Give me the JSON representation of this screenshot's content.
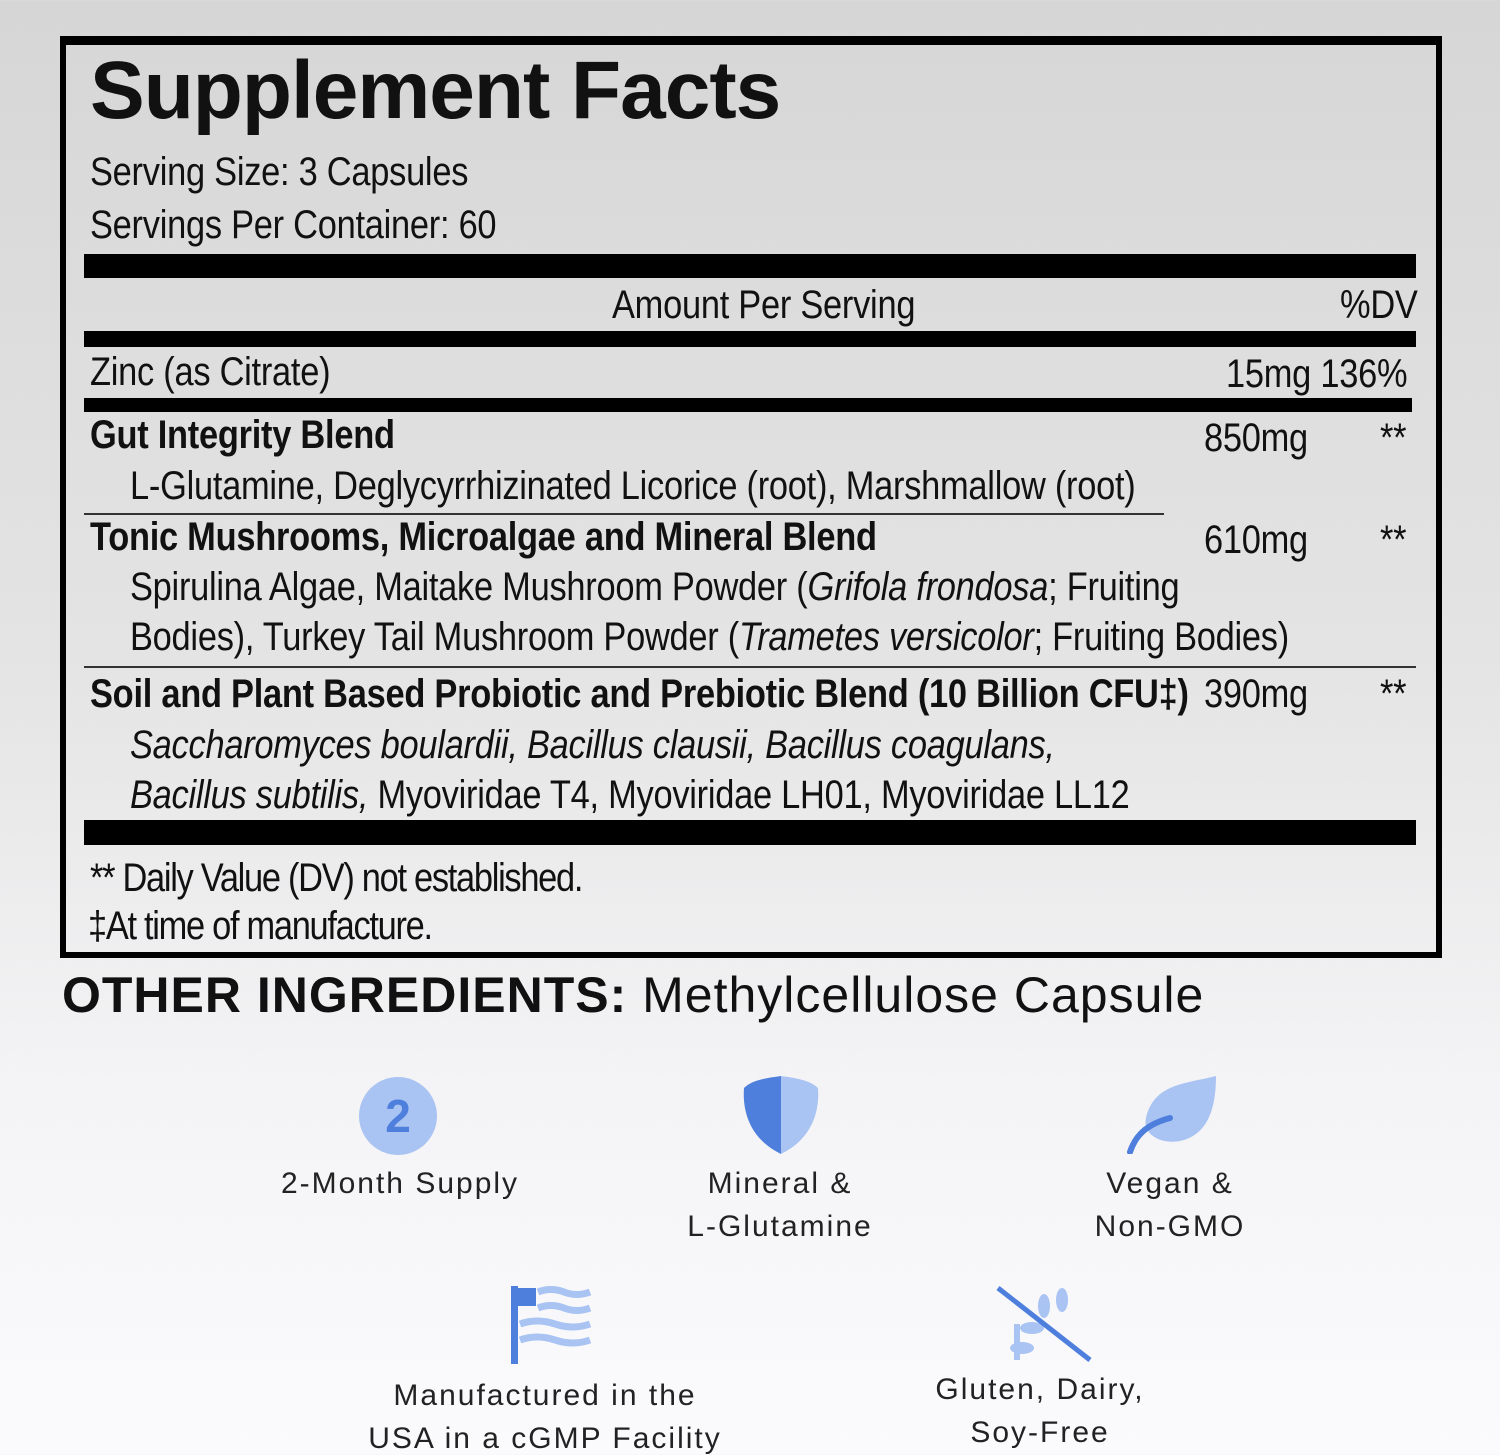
{
  "title": "Supplement Facts",
  "serving_size": "Serving Size: 3 Capsules",
  "servings_per_container": "Servings Per Container: 60",
  "header": {
    "amount": "Amount Per Serving",
    "dv": "%DV"
  },
  "zinc": {
    "name": "Zinc (as Citrate)",
    "amount": "15mg",
    "dv": "136%"
  },
  "blends": [
    {
      "name": "Gut Integrity Blend",
      "amount": "850mg",
      "dv": "**",
      "lines": [
        "L-Glutamine, Deglycyrrhizinated Licorice (root), Marshmallow (root)"
      ]
    },
    {
      "name": "Tonic Mushrooms, Microalgae and Mineral Blend",
      "amount": "610mg",
      "dv": "**",
      "l1a": "Spirulina Algae, Maitake Mushroom Powder (",
      "l1b": "Grifola frondosa",
      "l1c": "; Fruiting",
      "l2a": "Bodies), Turkey Tail Mushroom Powder (",
      "l2b": "Trametes versicolor",
      "l2c": "; Fruiting Bodies)"
    },
    {
      "name": "Soil and Plant Based Probiotic and Prebiotic Blend (10 Billion CFU‡)",
      "amount": "390mg",
      "dv": "**",
      "l1": "Saccharomyces boulardii, Bacillus clausii, Bacillus coagulans,",
      "l2a": "Bacillus subtilis,",
      "l2b": " Myoviridae T4, Myoviridae LH01, Myoviridae LL12"
    }
  ],
  "footnotes": [
    "** Daily Value (DV) not established.",
    "‡At time of manufacture."
  ],
  "other_ingredients": {
    "label": "OTHER INGREDIENTS:",
    "value": " Methylcellulose Capsule"
  },
  "badges": [
    {
      "icon": "number-2-circle-icon",
      "lines": [
        "2-Month Supply"
      ],
      "glyph": "2"
    },
    {
      "icon": "shield-icon",
      "lines": [
        "Mineral &",
        "L-Glutamine"
      ]
    },
    {
      "icon": "leaf-icon",
      "lines": [
        "Vegan &",
        "Non-GMO"
      ]
    },
    {
      "icon": "us-flag-icon",
      "lines": [
        "Manufactured in the",
        "USA in a cGMP Facility"
      ]
    },
    {
      "icon": "no-wheat-icon",
      "lines": [
        "Gluten, Dairy,",
        "Soy-Free"
      ]
    }
  ],
  "colors": {
    "icon_dark": "#4f7fdc",
    "icon_light": "#a9c3f3"
  }
}
